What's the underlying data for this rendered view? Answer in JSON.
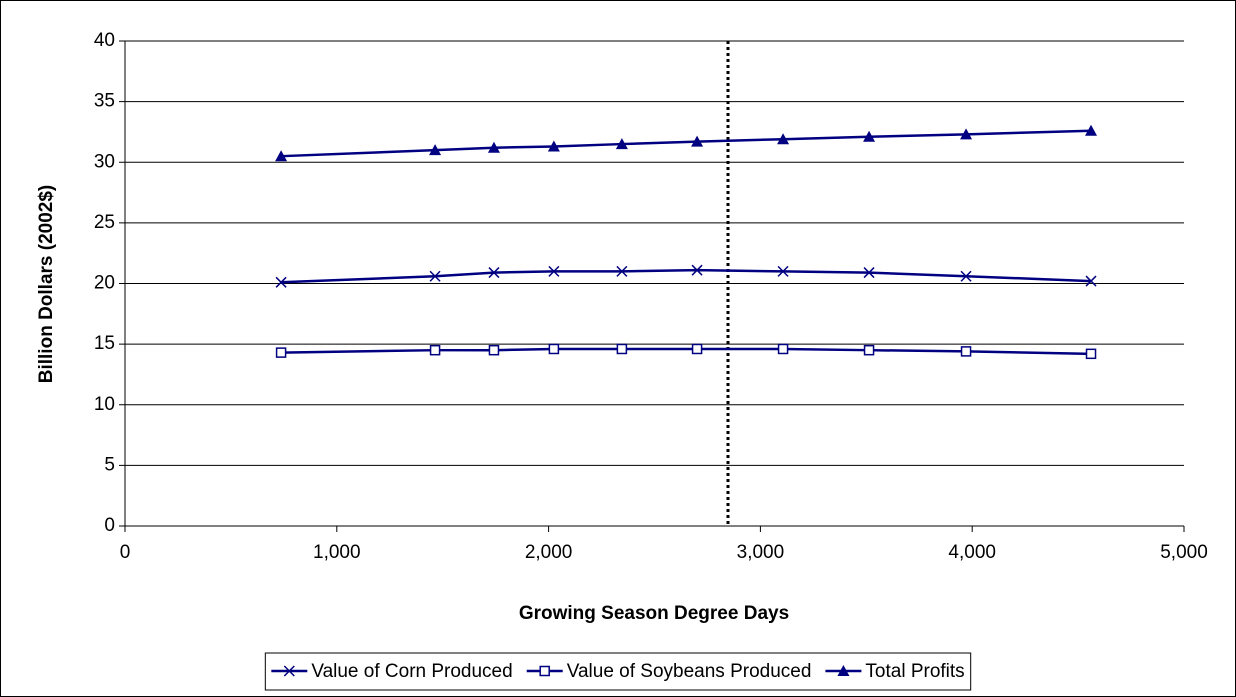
{
  "chart_data": {
    "type": "line",
    "x_label": "Growing Season Degree Days",
    "y_label": "Billion Dollars (2002$)",
    "x": [
      737,
      1464,
      1742,
      2025,
      2346,
      2701,
      3107,
      3513,
      3971,
      4561
    ],
    "series": [
      {
        "name": "Value of Corn Produced",
        "color": "#000080",
        "marker": "x",
        "values": [
          20.1,
          20.6,
          20.9,
          21.0,
          21.0,
          21.1,
          21.0,
          20.9,
          20.6,
          20.2
        ]
      },
      {
        "name": "Value of Soybeans Produced",
        "color": "#000080",
        "marker": "square",
        "values": [
          14.3,
          14.5,
          14.5,
          14.6,
          14.6,
          14.6,
          14.6,
          14.5,
          14.4,
          14.2
        ]
      },
      {
        "name": "Total Profits",
        "color": "#000080",
        "marker": "triangle",
        "values": [
          30.5,
          31.0,
          31.2,
          31.3,
          31.5,
          31.7,
          31.9,
          32.1,
          32.3,
          32.6
        ]
      }
    ],
    "vline": 2847,
    "xlim": [
      0,
      5000
    ],
    "xticks": [
      0,
      {
        "value": 1000,
        "label": "1,000"
      },
      {
        "value": 2000,
        "label": "2,000"
      },
      {
        "value": 3000,
        "label": "3,000"
      },
      {
        "value": 4000,
        "label": "4,000"
      },
      {
        "value": 5000,
        "label": "5,000"
      }
    ],
    "ylim": [
      0,
      40
    ],
    "yticks": [
      0,
      5,
      10,
      15,
      20,
      25,
      30,
      35,
      40
    ],
    "grid": true,
    "legend": "bottom"
  }
}
